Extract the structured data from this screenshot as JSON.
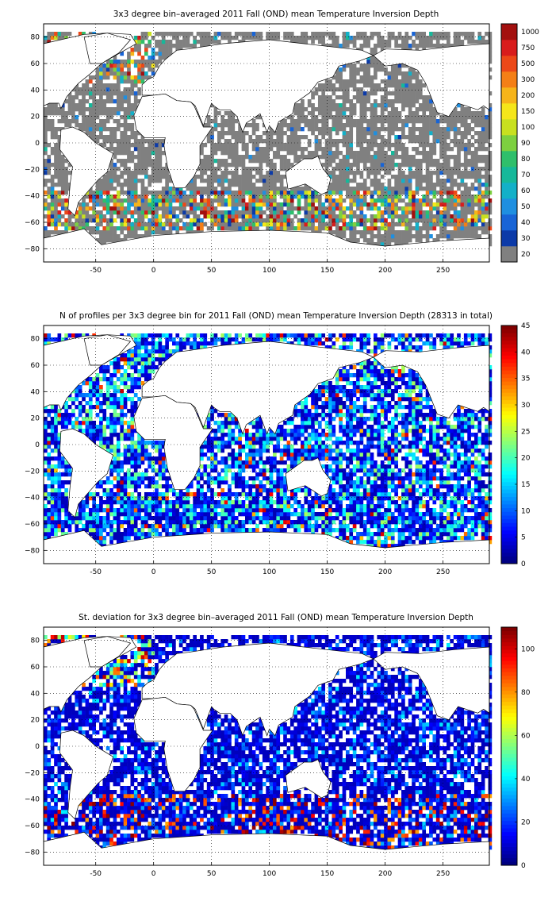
{
  "chart_data": [
    {
      "type": "heatmap",
      "title": "3x3 degree bin–averaged 2011 Fall (OND) mean Temperature Inversion Depth",
      "xlabel": "",
      "ylabel": "",
      "xlim": [
        -95,
        290
      ],
      "ylim": [
        -90,
        90
      ],
      "xticks": [
        "-50",
        "0",
        "50",
        "100",
        "150",
        "200",
        "250"
      ],
      "xtick_values": [
        -50,
        0,
        50,
        100,
        150,
        200,
        250
      ],
      "yticks": [
        "80",
        "60",
        "40",
        "20",
        "0",
        "−20",
        "−40",
        "−60",
        "−80"
      ],
      "ytick_values": [
        80,
        60,
        40,
        20,
        0,
        -20,
        -40,
        -60,
        -80
      ],
      "grid": true,
      "colorbar": {
        "scale": "categorical",
        "labels": [
          "20",
          "30",
          "40",
          "50",
          "60",
          "70",
          "80",
          "90",
          "100",
          "150",
          "200",
          "300",
          "500",
          "750",
          "1000"
        ],
        "colors": [
          "#808080",
          "#0c3aa8",
          "#1864d6",
          "#1f8fe0",
          "#13b0c8",
          "#16b89a",
          "#2fbf6b",
          "#7dd040",
          "#c8e020",
          "#f5e61a",
          "#f6b41a",
          "#f47f16",
          "#ec4818",
          "#d81c1c",
          "#a3100f"
        ]
      },
      "description_note": "gray = bins with values below 20 m; colored bins mainly along Southern Ocean and North Atlantic"
    },
    {
      "type": "heatmap",
      "title": "N of profiles per 3x3 degree bin for 2011 Fall (OND) mean Temperature Inversion Depth  (28313 in total)",
      "xlabel": "",
      "ylabel": "",
      "xlim": [
        -95,
        290
      ],
      "ylim": [
        -90,
        90
      ],
      "xticks": [
        "-50",
        "0",
        "50",
        "100",
        "150",
        "200",
        "250"
      ],
      "xtick_values": [
        -50,
        0,
        50,
        100,
        150,
        200,
        250
      ],
      "yticks": [
        "80",
        "60",
        "40",
        "20",
        "0",
        "−20",
        "−40",
        "−60",
        "−80"
      ],
      "ytick_values": [
        80,
        60,
        40,
        20,
        0,
        -20,
        -40,
        -60,
        -80
      ],
      "grid": true,
      "colorbar": {
        "scale": "continuous",
        "min": 0,
        "max": 45,
        "labels": [
          "0",
          "5",
          "10",
          "15",
          "20",
          "25",
          "30",
          "35",
          "40",
          "45"
        ]
      }
    },
    {
      "type": "heatmap",
      "title": "St. deviation for 3x3 degree bin–averaged 2011 Fall (OND) mean Temperature Inversion Depth",
      "xlabel": "",
      "ylabel": "",
      "xlim": [
        -95,
        290
      ],
      "ylim": [
        -90,
        90
      ],
      "xticks": [
        "-50",
        "0",
        "50",
        "100",
        "150",
        "200",
        "250"
      ],
      "xtick_values": [
        -50,
        0,
        50,
        100,
        150,
        200,
        250
      ],
      "yticks": [
        "80",
        "60",
        "40",
        "20",
        "0",
        "−20",
        "−40",
        "−60",
        "−80"
      ],
      "ytick_values": [
        80,
        60,
        40,
        20,
        0,
        -20,
        -40,
        -60,
        -80
      ],
      "grid": true,
      "colorbar": {
        "scale": "continuous",
        "min": 0,
        "max": 110,
        "labels": [
          "0",
          "20",
          "40",
          "60",
          "80",
          "100"
        ]
      }
    }
  ],
  "colors": {
    "ocean_default": "#808080",
    "land": "#ffffff",
    "coastline": "#000000"
  }
}
